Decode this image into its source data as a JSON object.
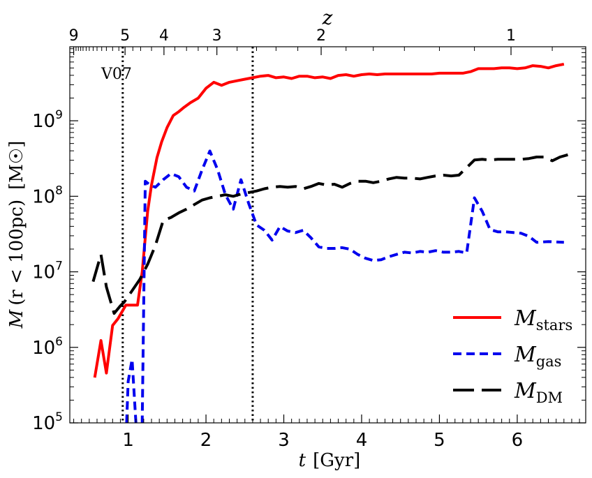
{
  "chart_data": {
    "type": "line",
    "xlabel": "t  [Gyr]",
    "xlabel_var": "t",
    "xlabel_unit": "[Gyr]",
    "ylabel": "M (r < 100pc)  [M☉]",
    "ylabel_var": "M",
    "ylabel_inner": "(r < 100pc)",
    "ylabel_unit": "[M☉]",
    "top_axis_label": "z",
    "xlim": [
      0.25,
      6.88
    ],
    "ylim_log10": [
      5,
      9.98
    ],
    "x_ticks": [
      1,
      2,
      3,
      4,
      5,
      6
    ],
    "x_tick_labels": [
      "1",
      "2",
      "3",
      "4",
      "5",
      "6"
    ],
    "y_ticks_log10": [
      5,
      6,
      7,
      8,
      9
    ],
    "y_tick_labels": [
      {
        "base": "10",
        "exp": "5"
      },
      {
        "base": "10",
        "exp": "6"
      },
      {
        "base": "10",
        "exp": "7"
      },
      {
        "base": "10",
        "exp": "8"
      },
      {
        "base": "10",
        "exp": "9"
      }
    ],
    "top_ticks": [
      {
        "label": "9",
        "t": 0.3
      },
      {
        "label": "5",
        "t": 0.96
      },
      {
        "label": "4",
        "t": 1.46
      },
      {
        "label": "3",
        "t": 2.14
      },
      {
        "label": "2",
        "t": 3.48
      },
      {
        "label": "1",
        "t": 5.92
      }
    ],
    "vlines": [
      {
        "t": 0.93,
        "label": "V07"
      },
      {
        "t": 2.6,
        "label": ""
      }
    ],
    "annotation": "V07",
    "legend_position": "lower-right",
    "series": [
      {
        "name": "M_stars",
        "symbol": "M",
        "subscript": "stars",
        "color": "#ff0000",
        "style": "solid",
        "points": [
          [
            0.57,
            5.6
          ],
          [
            0.65,
            6.09
          ],
          [
            0.72,
            5.66
          ],
          [
            0.8,
            6.29
          ],
          [
            0.87,
            6.38
          ],
          [
            0.97,
            6.56
          ],
          [
            1.03,
            6.56
          ],
          [
            1.12,
            6.56
          ],
          [
            1.18,
            7.0
          ],
          [
            1.25,
            7.8
          ],
          [
            1.3,
            8.15
          ],
          [
            1.37,
            8.51
          ],
          [
            1.43,
            8.72
          ],
          [
            1.5,
            8.91
          ],
          [
            1.58,
            9.07
          ],
          [
            1.65,
            9.12
          ],
          [
            1.72,
            9.18
          ],
          [
            1.8,
            9.24
          ],
          [
            1.9,
            9.3
          ],
          [
            2.0,
            9.43
          ],
          [
            2.1,
            9.51
          ],
          [
            2.2,
            9.47
          ],
          [
            2.3,
            9.51
          ],
          [
            2.4,
            9.53
          ],
          [
            2.5,
            9.55
          ],
          [
            2.6,
            9.57
          ],
          [
            2.7,
            9.59
          ],
          [
            2.8,
            9.6
          ],
          [
            2.9,
            9.57
          ],
          [
            3.0,
            9.58
          ],
          [
            3.1,
            9.56
          ],
          [
            3.2,
            9.59
          ],
          [
            3.3,
            9.59
          ],
          [
            3.4,
            9.57
          ],
          [
            3.5,
            9.58
          ],
          [
            3.6,
            9.56
          ],
          [
            3.7,
            9.6
          ],
          [
            3.8,
            9.61
          ],
          [
            3.9,
            9.59
          ],
          [
            4.0,
            9.61
          ],
          [
            4.1,
            9.62
          ],
          [
            4.2,
            9.61
          ],
          [
            4.3,
            9.62
          ],
          [
            4.4,
            9.62
          ],
          [
            4.5,
            9.62
          ],
          [
            4.6,
            9.62
          ],
          [
            4.7,
            9.62
          ],
          [
            4.8,
            9.62
          ],
          [
            4.9,
            9.62
          ],
          [
            5.0,
            9.63
          ],
          [
            5.1,
            9.63
          ],
          [
            5.2,
            9.63
          ],
          [
            5.3,
            9.63
          ],
          [
            5.4,
            9.65
          ],
          [
            5.5,
            9.69
          ],
          [
            5.6,
            9.69
          ],
          [
            5.7,
            9.69
          ],
          [
            5.8,
            9.7
          ],
          [
            5.9,
            9.7
          ],
          [
            6.0,
            9.69
          ],
          [
            6.1,
            9.7
          ],
          [
            6.2,
            9.73
          ],
          [
            6.3,
            9.72
          ],
          [
            6.4,
            9.7
          ],
          [
            6.5,
            9.73
          ],
          [
            6.6,
            9.75
          ]
        ]
      },
      {
        "name": "M_gas",
        "symbol": "M",
        "subscript": "gas",
        "color": "#0000ee",
        "style": "dashed",
        "points": [
          [
            0.98,
            5.0
          ],
          [
            1.0,
            5.55
          ],
          [
            1.05,
            5.84
          ],
          [
            1.1,
            5.0
          ],
          [
            1.18,
            5.0
          ],
          [
            1.22,
            8.2
          ],
          [
            1.28,
            8.15
          ],
          [
            1.35,
            8.12
          ],
          [
            1.45,
            8.22
          ],
          [
            1.55,
            8.3
          ],
          [
            1.65,
            8.26
          ],
          [
            1.75,
            8.12
          ],
          [
            1.85,
            8.07
          ],
          [
            1.95,
            8.35
          ],
          [
            2.05,
            8.6
          ],
          [
            2.15,
            8.35
          ],
          [
            2.25,
            8.02
          ],
          [
            2.35,
            7.83
          ],
          [
            2.45,
            8.22
          ],
          [
            2.55,
            7.9
          ],
          [
            2.65,
            7.62
          ],
          [
            2.75,
            7.55
          ],
          [
            2.85,
            7.42
          ],
          [
            2.95,
            7.6
          ],
          [
            3.05,
            7.54
          ],
          [
            3.15,
            7.52
          ],
          [
            3.25,
            7.55
          ],
          [
            3.35,
            7.45
          ],
          [
            3.45,
            7.33
          ],
          [
            3.55,
            7.31
          ],
          [
            3.65,
            7.31
          ],
          [
            3.75,
            7.32
          ],
          [
            3.85,
            7.3
          ],
          [
            3.95,
            7.23
          ],
          [
            4.05,
            7.18
          ],
          [
            4.15,
            7.15
          ],
          [
            4.25,
            7.16
          ],
          [
            4.35,
            7.2
          ],
          [
            4.45,
            7.23
          ],
          [
            4.55,
            7.26
          ],
          [
            4.65,
            7.25
          ],
          [
            4.75,
            7.27
          ],
          [
            4.85,
            7.26
          ],
          [
            4.95,
            7.28
          ],
          [
            5.05,
            7.26
          ],
          [
            5.15,
            7.26
          ],
          [
            5.25,
            7.27
          ],
          [
            5.35,
            7.25
          ],
          [
            5.45,
            7.98
          ],
          [
            5.55,
            7.8
          ],
          [
            5.65,
            7.56
          ],
          [
            5.75,
            7.53
          ],
          [
            5.85,
            7.53
          ],
          [
            5.95,
            7.52
          ],
          [
            6.05,
            7.51
          ],
          [
            6.15,
            7.47
          ],
          [
            6.25,
            7.39
          ],
          [
            6.4,
            7.4
          ],
          [
            6.6,
            7.39
          ]
        ]
      },
      {
        "name": "M_DM",
        "symbol": "M",
        "subscript": "DM",
        "color": "#000000",
        "style": "longdash",
        "points": [
          [
            0.55,
            6.87
          ],
          [
            0.65,
            7.23
          ],
          [
            0.72,
            6.8
          ],
          [
            0.82,
            6.45
          ],
          [
            0.9,
            6.55
          ],
          [
            0.95,
            6.6
          ],
          [
            1.05,
            6.75
          ],
          [
            1.15,
            6.9
          ],
          [
            1.25,
            7.1
          ],
          [
            1.35,
            7.35
          ],
          [
            1.45,
            7.68
          ],
          [
            1.55,
            7.72
          ],
          [
            1.65,
            7.78
          ],
          [
            1.75,
            7.83
          ],
          [
            1.85,
            7.89
          ],
          [
            1.95,
            7.95
          ],
          [
            2.05,
            7.98
          ],
          [
            2.15,
            8.0
          ],
          [
            2.25,
            8.02
          ],
          [
            2.35,
            8.0
          ],
          [
            2.45,
            8.03
          ],
          [
            2.55,
            8.05
          ],
          [
            2.65,
            8.07
          ],
          [
            2.75,
            8.1
          ],
          [
            2.85,
            8.12
          ],
          [
            2.95,
            8.13
          ],
          [
            3.05,
            8.12
          ],
          [
            3.15,
            8.13
          ],
          [
            3.25,
            8.1
          ],
          [
            3.35,
            8.13
          ],
          [
            3.45,
            8.17
          ],
          [
            3.55,
            8.15
          ],
          [
            3.65,
            8.16
          ],
          [
            3.75,
            8.12
          ],
          [
            3.85,
            8.17
          ],
          [
            3.95,
            8.2
          ],
          [
            4.05,
            8.2
          ],
          [
            4.15,
            8.18
          ],
          [
            4.25,
            8.2
          ],
          [
            4.35,
            8.23
          ],
          [
            4.45,
            8.25
          ],
          [
            4.55,
            8.24
          ],
          [
            4.65,
            8.24
          ],
          [
            4.75,
            8.23
          ],
          [
            4.85,
            8.25
          ],
          [
            4.95,
            8.27
          ],
          [
            5.05,
            8.28
          ],
          [
            5.15,
            8.27
          ],
          [
            5.25,
            8.28
          ],
          [
            5.35,
            8.38
          ],
          [
            5.45,
            8.48
          ],
          [
            5.55,
            8.49
          ],
          [
            5.65,
            8.48
          ],
          [
            5.75,
            8.49
          ],
          [
            5.85,
            8.49
          ],
          [
            5.95,
            8.49
          ],
          [
            6.05,
            8.49
          ],
          [
            6.15,
            8.5
          ],
          [
            6.25,
            8.52
          ],
          [
            6.35,
            8.52
          ],
          [
            6.45,
            8.47
          ],
          [
            6.55,
            8.52
          ],
          [
            6.65,
            8.55
          ]
        ]
      }
    ]
  }
}
